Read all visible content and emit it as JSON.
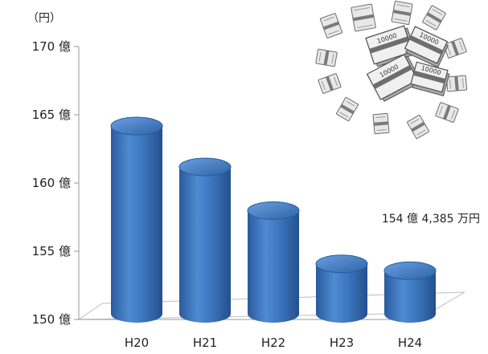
{
  "chart_data": {
    "type": "bar",
    "unit_label": "（円）",
    "categories": [
      "H20",
      "H21",
      "H22",
      "H23",
      "H24"
    ],
    "values": [
      165.0,
      162.0,
      158.8,
      154.9,
      154.4
    ],
    "ylim": [
      150,
      170
    ],
    "yticks": [
      {
        "value": 170,
        "label": "170 億"
      },
      {
        "value": 165,
        "label": "165 億"
      },
      {
        "value": 160,
        "label": "160 億"
      },
      {
        "value": 155,
        "label": "155 億"
      },
      {
        "value": 150,
        "label": "150 億"
      }
    ],
    "annotation": "154 億 4,385 万円",
    "grid": false,
    "colors": {
      "bar": "#3d78c0",
      "bar_dark": "#244f8a",
      "bar_light": "#8fb7e6",
      "axis": "#9a9a9a",
      "floor": "#d9d9d9"
    }
  },
  "illustration": {
    "icon": "money-bundles-icon",
    "bill_text": "10000"
  }
}
